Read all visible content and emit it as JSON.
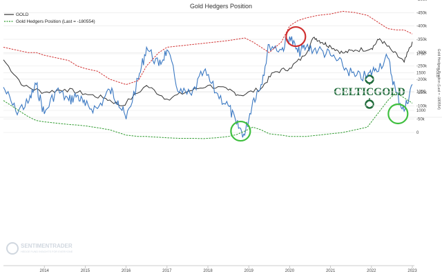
{
  "chart_data": [
    {
      "type": "line",
      "title": "Gold Hedgers Position",
      "legend": [
        "GOLD",
        "Gold Hedgers Position (Last = -180554)"
      ],
      "ylabel": "GOLD",
      "ylim": [
        1000,
        2000
      ],
      "yticks": [
        "1000",
        "1250",
        "1500",
        "1750"
      ],
      "x": [
        2013.0,
        2013.5,
        2014.0,
        2014.5,
        2015.0,
        2015.5,
        2015.9,
        2016.5,
        2017.0,
        2017.5,
        2018.0,
        2018.5,
        2018.8,
        2019.3,
        2019.6,
        2020.0,
        2020.35,
        2020.6,
        2020.8,
        2021.0,
        2021.3,
        2021.6,
        2022.0,
        2022.2,
        2022.5,
        2022.8,
        2023.0
      ],
      "series": [
        {
          "name": "GOLD",
          "color": "#333333",
          "values": [
            1670,
            1320,
            1240,
            1280,
            1220,
            1160,
            1060,
            1330,
            1150,
            1250,
            1330,
            1270,
            1200,
            1290,
            1500,
            1560,
            1720,
            1970,
            1900,
            1850,
            1760,
            1800,
            1820,
            1950,
            1790,
            1640,
            1910
          ]
        }
      ]
    },
    {
      "type": "line",
      "legend": [
        "Gold Hedgers Position (Last = -180554)"
      ],
      "ylabel": "Gold Hedgers Position (Last = -180554)",
      "ylim": [
        -500000,
        50000
      ],
      "yticks": [
        "0",
        "-50k",
        "-100k",
        "-150k",
        "-200k",
        "-250k",
        "-300k",
        "-350k",
        "-400k",
        "-450k",
        "-500k"
      ],
      "xticks": [
        "2014",
        "2015",
        "2016",
        "2017",
        "2018",
        "2019",
        "2020",
        "2021",
        "2022",
        "2023"
      ],
      "x": [
        2013.0,
        2013.3,
        2013.6,
        2013.8,
        2014.0,
        2014.3,
        2014.6,
        2014.8,
        2015.0,
        2015.3,
        2015.6,
        2015.8,
        2016.0,
        2016.3,
        2016.5,
        2016.8,
        2017.0,
        2017.3,
        2017.6,
        2017.9,
        2018.2,
        2018.5,
        2018.7,
        2018.9,
        2019.1,
        2019.3,
        2019.5,
        2019.8,
        2020.0,
        2020.2,
        2020.4,
        2020.7,
        2021.0,
        2021.3,
        2021.6,
        2021.9,
        2022.1,
        2022.4,
        2022.6,
        2022.8,
        2023.0
      ],
      "series": [
        {
          "name": "Gold Hedgers Position (Last = -180554)",
          "color": "#3a78c2",
          "values": [
            -170000,
            -80000,
            -110000,
            -180000,
            -70000,
            -160000,
            -120000,
            -140000,
            -100000,
            -90000,
            -160000,
            -120000,
            -50000,
            -200000,
            -320000,
            -250000,
            -310000,
            -150000,
            -140000,
            -230000,
            -150000,
            -100000,
            -30000,
            10000,
            -120000,
            -180000,
            -330000,
            -310000,
            -360000,
            -300000,
            -320000,
            -310000,
            -290000,
            -250000,
            -210000,
            -210000,
            -240000,
            -280000,
            -150000,
            -80000,
            -180554
          ]
        },
        {
          "name": "",
          "color": "#2e9a2e",
          "values": [
            -120000,
            -90000,
            -60000,
            -45000,
            -40000,
            -35000,
            -30000,
            -28000,
            -25000,
            -18000,
            -10000,
            0,
            10000,
            15000,
            15000,
            18000,
            20000,
            22000,
            22000,
            23000,
            20000,
            15000,
            8000,
            -5000,
            -20000,
            -10000,
            5000,
            10000,
            15000,
            15000,
            15000,
            10000,
            5000,
            0,
            -10000,
            -20000,
            -60000,
            -120000,
            -150000,
            -130000,
            -110000
          ]
        },
        {
          "name": "",
          "color": "#d03030",
          "values": [
            -320000,
            -310000,
            -300000,
            -300000,
            -290000,
            -280000,
            -270000,
            -250000,
            -240000,
            -230000,
            -200000,
            -190000,
            -180000,
            -195000,
            -250000,
            -300000,
            -320000,
            -325000,
            -330000,
            -335000,
            -340000,
            -345000,
            -350000,
            -355000,
            -340000,
            -320000,
            -300000,
            -340000,
            -400000,
            -420000,
            -430000,
            -440000,
            -445000,
            -455000,
            -450000,
            -440000,
            -420000,
            -390000,
            -385000,
            -385000,
            -370000
          ]
        }
      ]
    }
  ],
  "watermark": {
    "brand": "SENTIMENTRADER",
    "tagline": "HEDGE FUND INSIGHTS FOR EVERYONE"
  },
  "logo": {
    "text": "CELTICGOLD",
    "color": "#1f6b3a"
  },
  "annotations": [
    {
      "shape": "circle",
      "color": "#3fbf3f",
      "x": 2018.8,
      "y": -5000
    },
    {
      "shape": "circle",
      "color": "#d03030",
      "x": 2020.15,
      "y": -360000
    },
    {
      "shape": "circle",
      "color": "#3fbf3f",
      "x": 2022.65,
      "y": -70000
    }
  ]
}
